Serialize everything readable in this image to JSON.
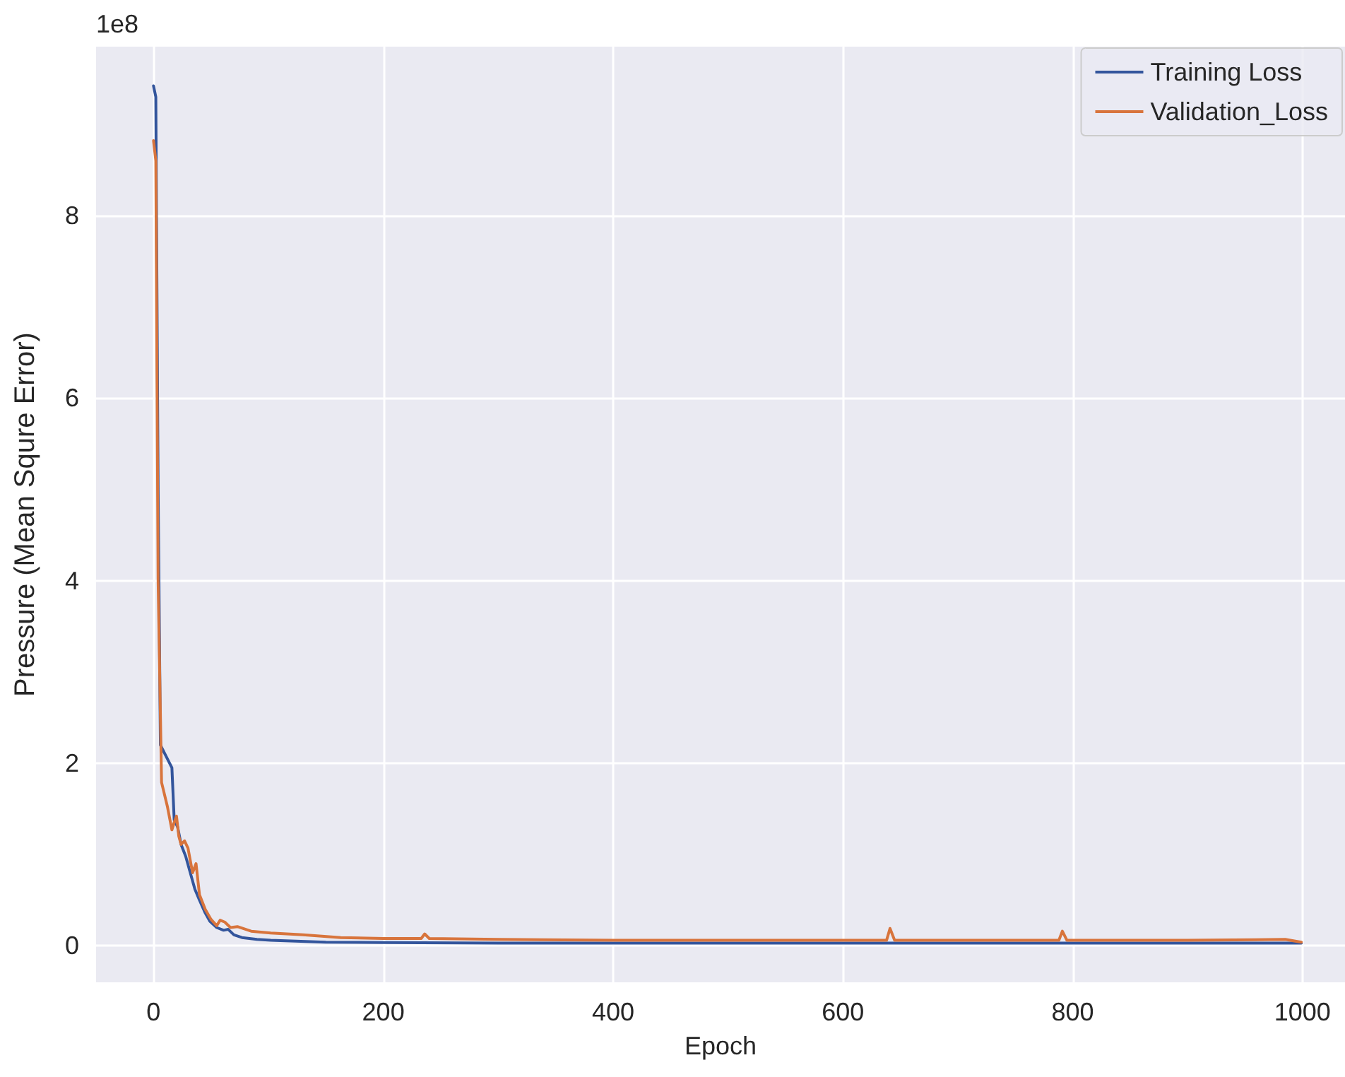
{
  "chart_data": {
    "type": "line",
    "xlabel": "Epoch",
    "ylabel": "Pressure (Mean Squre Error)",
    "annotations": [
      "1e8"
    ],
    "xlim": [
      -50,
      1037
    ],
    "xticks": [
      0,
      200,
      400,
      600,
      800,
      1000
    ],
    "ylim": [
      -0.4,
      9.85
    ],
    "yticks": [
      0,
      2,
      4,
      6,
      8
    ],
    "grid": true,
    "legend": "top right",
    "marker": "none",
    "line_style": "solid",
    "series": [
      {
        "name": "Training Loss",
        "color": "#33559c",
        "x": [
          0,
          2,
          4,
          6,
          10,
          16,
          18,
          21,
          24,
          28,
          32,
          36,
          40,
          45,
          49,
          55,
          61,
          65,
          70,
          77,
          90,
          102,
          150,
          200,
          300,
          400,
          500,
          640,
          700,
          800,
          900,
          999
        ],
        "values": [
          9.42,
          9.3,
          5.0,
          2.2,
          2.1,
          1.95,
          1.38,
          1.3,
          1.11,
          0.98,
          0.8,
          0.62,
          0.5,
          0.36,
          0.27,
          0.2,
          0.17,
          0.18,
          0.12,
          0.09,
          0.07,
          0.06,
          0.04,
          0.035,
          0.03,
          0.03,
          0.03,
          0.03,
          0.03,
          0.03,
          0.03,
          0.03
        ]
      },
      {
        "name": "Validation_Loss",
        "color": "#d8743c",
        "x": [
          0,
          2,
          4,
          7,
          12,
          16,
          18,
          20,
          22,
          24,
          27,
          30,
          34,
          37,
          40,
          45,
          50,
          55,
          58,
          62,
          67,
          73,
          85,
          102,
          130,
          163,
          200,
          233,
          236,
          240,
          300,
          400,
          500,
          600,
          638,
          641,
          645,
          700,
          788,
          791,
          795,
          900,
          985,
          999
        ],
        "values": [
          8.82,
          8.6,
          4.0,
          1.79,
          1.53,
          1.27,
          1.35,
          1.42,
          1.2,
          1.11,
          1.15,
          1.07,
          0.8,
          0.9,
          0.56,
          0.4,
          0.29,
          0.22,
          0.28,
          0.26,
          0.2,
          0.21,
          0.16,
          0.14,
          0.12,
          0.09,
          0.08,
          0.08,
          0.13,
          0.08,
          0.07,
          0.06,
          0.06,
          0.06,
          0.06,
          0.19,
          0.06,
          0.06,
          0.06,
          0.16,
          0.06,
          0.06,
          0.07,
          0.04
        ]
      }
    ]
  }
}
